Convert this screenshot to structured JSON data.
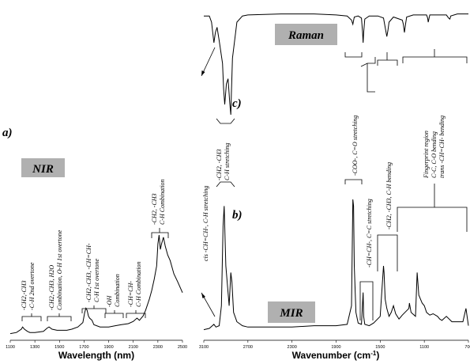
{
  "figure": {
    "panel_a_label": "a)",
    "panel_b_label": "b)",
    "panel_c_label": "c)",
    "nir_box_label": "NIR",
    "raman_box_label": "Raman",
    "mir_box_label": "MIR",
    "box_color": "#b0b0b0"
  },
  "chart_data": [
    {
      "type": "line",
      "id": "nir",
      "xlabel": "Wavelength (nm)",
      "ylabel": "",
      "xlim": [
        1100,
        2500
      ],
      "xticks": [
        "1100",
        "1300",
        "1500",
        "1700",
        "1900",
        "2100",
        "2300",
        "2500"
      ],
      "grid": false,
      "series": [
        {
          "x": [
            1100,
            1150,
            1190,
            1200,
            1215,
            1240,
            1260,
            1300,
            1370,
            1400,
            1415,
            1440,
            1480,
            1520,
            1560,
            1600,
            1650,
            1690,
            1705,
            1715,
            1725,
            1735,
            1745,
            1765,
            1780,
            1830,
            1900,
            1950,
            2000,
            2060,
            2100,
            2130,
            2150,
            2180,
            2200,
            2230,
            2250,
            2270,
            2290,
            2300,
            2310,
            2320,
            2330,
            2345,
            2360,
            2380,
            2400,
            2430,
            2460,
            2500
          ],
          "y": [
            0.01,
            0.02,
            0.05,
            0.07,
            0.05,
            0.03,
            0.02,
            0.02,
            0.03,
            0.06,
            0.07,
            0.05,
            0.04,
            0.04,
            0.04,
            0.05,
            0.07,
            0.11,
            0.2,
            0.24,
            0.22,
            0.17,
            0.15,
            0.13,
            0.09,
            0.07,
            0.07,
            0.08,
            0.09,
            0.1,
            0.12,
            0.15,
            0.13,
            0.17,
            0.22,
            0.32,
            0.4,
            0.5,
            0.62,
            0.82,
            0.9,
            0.77,
            0.82,
            0.88,
            0.8,
            0.72,
            0.67,
            0.55,
            0.48,
            0.38
          ]
        }
      ],
      "annotations": [
        "-CH2,-CH3",
        "-C-H 2nd overtone",
        "-CH2,-CH3,  H2O",
        "Combination, O-H 1st overtone",
        "-CH2,-CH3, -CH=CH-",
        "C-H 1st overtone",
        "-OH",
        "Combination",
        "-CH=CH-",
        "C-H Combination",
        "-CH2, -CH3",
        "C-H Combination"
      ]
    },
    {
      "type": "line",
      "id": "mir",
      "xlabel": "Wavenumber (cm-1)",
      "ylabel": "",
      "xlim": [
        3100,
        700
      ],
      "xticks": [
        "3100",
        "2700",
        "2300",
        "1900",
        "1500",
        "1100",
        "700"
      ],
      "grid": false,
      "series": [
        {
          "x": [
            3100,
            3050,
            3008,
            2990,
            2960,
            2940,
            2925,
            2915,
            2900,
            2870,
            2855,
            2845,
            2830,
            2800,
            2750,
            2700,
            2500,
            2300,
            2100,
            1900,
            1800,
            1760,
            1748,
            1742,
            1735,
            1720,
            1700,
            1670,
            1655,
            1650,
            1640,
            1600,
            1560,
            1500,
            1470,
            1465,
            1455,
            1440,
            1420,
            1400,
            1380,
            1360,
            1330,
            1300,
            1240,
            1235,
            1220,
            1180,
            1165,
            1150,
            1120,
            1100,
            1080,
            1050,
            1020,
            980,
            960,
            940,
            900,
            850,
            800,
            750,
            722,
            700
          ],
          "y": [
            0.02,
            0.03,
            0.06,
            0.04,
            0.05,
            0.2,
            0.8,
            0.95,
            0.5,
            0.2,
            0.45,
            0.38,
            0.15,
            0.08,
            0.05,
            0.04,
            0.04,
            0.04,
            0.05,
            0.05,
            0.06,
            0.2,
            1.0,
            0.95,
            0.5,
            0.15,
            0.07,
            0.06,
            0.3,
            0.12,
            0.06,
            0.05,
            0.07,
            0.12,
            0.5,
            0.45,
            0.25,
            0.18,
            0.12,
            0.15,
            0.2,
            0.14,
            0.1,
            0.13,
            0.18,
            0.22,
            0.15,
            0.12,
            0.45,
            0.28,
            0.22,
            0.2,
            0.15,
            0.13,
            0.14,
            0.12,
            0.1,
            0.09,
            0.12,
            0.08,
            0.08,
            0.08,
            0.18,
            0.05
          ]
        }
      ],
      "annotations": [
        "cis -CH=CH-, C-H stretching",
        "-CH2, -CH3",
        "C-H stretching",
        "-COO-, C=O stretching",
        "-CH=CH-, C=C stretching",
        "-CH2, -CH3, C-H bending",
        "Fingerprint region",
        "C-C, C-O bending",
        "trans -CH=CH- bending"
      ]
    },
    {
      "type": "line",
      "id": "raman",
      "xlabel": "",
      "ylabel": "",
      "xlim": [
        3100,
        700
      ],
      "grid": false,
      "series": [
        {
          "x": [
            3100,
            3050,
            3030,
            3008,
            2995,
            2980,
            2960,
            2930,
            2920,
            2910,
            2895,
            2880,
            2870,
            2865,
            2855,
            2850,
            2840,
            2800,
            2750,
            2700,
            2400,
            2100,
            1900,
            1800,
            1760,
            1748,
            1735,
            1700,
            1670,
            1660,
            1655,
            1650,
            1640,
            1600,
            1520,
            1470,
            1440,
            1430,
            1420,
            1380,
            1300,
            1290,
            1280,
            1270,
            1260,
            1200,
            1080,
            1070,
            1065,
            1050,
            900,
            880,
            868,
            860,
            800,
            700
          ],
          "y": [
            0.04,
            0.04,
            0.1,
            0.3,
            0.2,
            0.15,
            0.28,
            0.5,
            0.75,
            0.9,
            0.7,
            0.65,
            0.8,
            0.88,
            1.0,
            0.8,
            0.45,
            0.1,
            0.04,
            0.03,
            0.02,
            0.02,
            0.03,
            0.04,
            0.08,
            0.12,
            0.05,
            0.04,
            0.06,
            0.2,
            0.3,
            0.2,
            0.07,
            0.04,
            0.04,
            0.06,
            0.24,
            0.18,
            0.1,
            0.05,
            0.08,
            0.12,
            0.2,
            0.12,
            0.05,
            0.03,
            0.03,
            0.06,
            0.1,
            0.03,
            0.03,
            0.06,
            0.07,
            0.04,
            0.02,
            0.02
          ]
        }
      ]
    }
  ]
}
